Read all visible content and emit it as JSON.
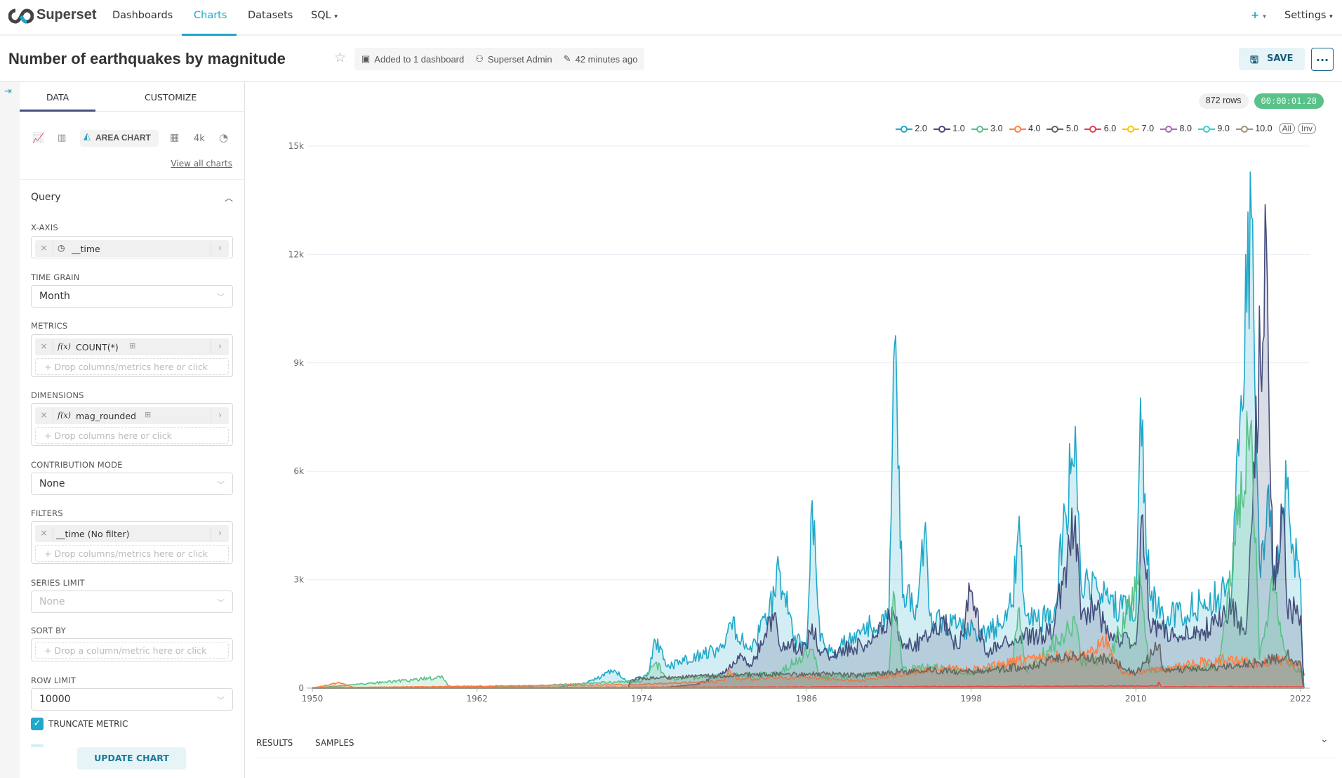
{
  "nav": {
    "brand": "Superset",
    "items": [
      "Dashboards",
      "Charts",
      "Datasets",
      "SQL"
    ],
    "active": "Charts",
    "plus": "+",
    "settings": "Settings"
  },
  "header": {
    "title": "Number of earthquakes by magnitude",
    "dashboards": "Added to 1 dashboard",
    "owner": "Superset Admin",
    "modified": "42 minutes ago",
    "save": "SAVE",
    "more": "..."
  },
  "sidebar": {
    "tabs": [
      "DATA",
      "CUSTOMIZE"
    ],
    "viz_types": {
      "active": "AREA CHART",
      "big_number": "4k"
    },
    "view_all": "View all charts",
    "section": "Query",
    "x_axis": {
      "label": "X-AXIS",
      "value": "__time"
    },
    "time_grain": {
      "label": "TIME GRAIN",
      "value": "Month"
    },
    "metrics": {
      "label": "METRICS",
      "value": "COUNT(*)",
      "fx": "f(x)",
      "placeholder": "Drop columns/metrics here or click"
    },
    "dimensions": {
      "label": "DIMENSIONS",
      "value": "mag_rounded",
      "fx": "f(x)",
      "placeholder": "Drop columns here or click"
    },
    "contribution": {
      "label": "CONTRIBUTION MODE",
      "value": "None"
    },
    "filters": {
      "label": "FILTERS",
      "value": "__time (No filter)",
      "placeholder": "Drop columns/metrics here or click"
    },
    "series_limit": {
      "label": "SERIES LIMIT",
      "placeholder": "None"
    },
    "sort_by": {
      "label": "SORT BY",
      "placeholder": "Drop a column/metric here or click"
    },
    "row_limit": {
      "label": "ROW LIMIT",
      "value": "10000"
    },
    "truncate": {
      "label": "TRUNCATE METRIC",
      "checked": true
    },
    "update": "UPDATE CHART"
  },
  "chart_pane": {
    "rows": "872 rows",
    "timer": "00:00:01.28",
    "timer_color": "#5ac189",
    "bottom_tabs": [
      "RESULTS",
      "SAMPLES"
    ],
    "legend_buttons": [
      "All",
      "Inv"
    ]
  },
  "chart_data": {
    "type": "area",
    "xlim": [
      1950,
      2022
    ],
    "ylim": [
      0,
      15000
    ],
    "xticks": [
      1950,
      1962,
      1974,
      1986,
      1998,
      2010,
      2022
    ],
    "yticks": [
      0,
      3000,
      6000,
      9000,
      12000,
      15000
    ],
    "ytick_labels": [
      "0",
      "3k",
      "6k",
      "9k",
      "12k",
      "15k"
    ],
    "grid": true,
    "legend": "top-right",
    "series": [
      {
        "name": "2.0",
        "color": "#1FA8C9",
        "points": [
          [
            1950,
            0
          ],
          [
            1968,
            30
          ],
          [
            1970,
            150
          ],
          [
            1972,
            500
          ],
          [
            1973,
            150
          ],
          [
            1974.5,
            400
          ],
          [
            1975,
            1300
          ],
          [
            1976,
            600
          ],
          [
            1978,
            900
          ],
          [
            1980,
            1100
          ],
          [
            1980.5,
            1800
          ],
          [
            1982,
            1000
          ],
          [
            1983.7,
            2600
          ],
          [
            1984,
            3300
          ],
          [
            1985,
            1500
          ],
          [
            1986,
            1100
          ],
          [
            1986.4,
            5300
          ],
          [
            1987,
            1300
          ],
          [
            1988,
            1000
          ],
          [
            1990,
            1600
          ],
          [
            1992,
            1900
          ],
          [
            1992.4,
            9700
          ],
          [
            1993,
            2500
          ],
          [
            1994,
            2300
          ],
          [
            1994.7,
            4700
          ],
          [
            1995,
            2000
          ],
          [
            1997,
            1700
          ],
          [
            1999,
            1500
          ],
          [
            2000,
            1700
          ],
          [
            2001,
            2300
          ],
          [
            2001.4,
            4400
          ],
          [
            2002,
            2000
          ],
          [
            2004,
            1900
          ],
          [
            2005.6,
            7300
          ],
          [
            2006,
            2900
          ],
          [
            2008,
            2400
          ],
          [
            2010,
            2000
          ],
          [
            2010.3,
            8300
          ],
          [
            2011,
            2600
          ],
          [
            2012,
            2000
          ],
          [
            2014,
            2200
          ],
          [
            2016,
            2600
          ],
          [
            2017,
            2800
          ],
          [
            2018.4,
            13300
          ],
          [
            2019,
            3500
          ],
          [
            2019.8,
            5300
          ],
          [
            2020,
            3000
          ],
          [
            2021,
            5500
          ],
          [
            2021.5,
            3800
          ],
          [
            2022,
            3000
          ],
          [
            2022.2,
            0
          ]
        ]
      },
      {
        "name": "1.0",
        "color": "#454E7C",
        "points": [
          [
            1950,
            0
          ],
          [
            1975,
            0
          ],
          [
            1978,
            100
          ],
          [
            1980,
            400
          ],
          [
            1981,
            900
          ],
          [
            1982,
            600
          ],
          [
            1983.7,
            2100
          ],
          [
            1984,
            1200
          ],
          [
            1986,
            1100
          ],
          [
            1986.4,
            1800
          ],
          [
            1987,
            900
          ],
          [
            1990,
            1200
          ],
          [
            1992.4,
            2000
          ],
          [
            1993,
            1100
          ],
          [
            1995,
            1400
          ],
          [
            1996,
            2000
          ],
          [
            1997,
            1100
          ],
          [
            1998,
            2700
          ],
          [
            1999,
            1000
          ],
          [
            2001,
            1300
          ],
          [
            2004,
            1600
          ],
          [
            2005.6,
            4800
          ],
          [
            2006,
            1900
          ],
          [
            2007,
            2300
          ],
          [
            2008,
            1500
          ],
          [
            2010,
            1200
          ],
          [
            2010.5,
            4800
          ],
          [
            2011,
            1800
          ],
          [
            2013,
            1400
          ],
          [
            2015,
            1600
          ],
          [
            2017,
            2200
          ],
          [
            2018,
            1500
          ],
          [
            2019.5,
            12500
          ],
          [
            2020,
            2700
          ],
          [
            2020.8,
            5000
          ],
          [
            2021,
            2300
          ],
          [
            2022,
            2000
          ],
          [
            2022.2,
            300
          ]
        ]
      },
      {
        "name": "3.0",
        "color": "#5AC189",
        "points": [
          [
            1950,
            0
          ],
          [
            1959.5,
            300
          ],
          [
            1960,
            20
          ],
          [
            1966,
            60
          ],
          [
            1974,
            200
          ],
          [
            1975,
            700
          ],
          [
            1976,
            250
          ],
          [
            1980,
            350
          ],
          [
            1984,
            400
          ],
          [
            1986.4,
            1100
          ],
          [
            1987,
            300
          ],
          [
            1992,
            400
          ],
          [
            1992.4,
            2600
          ],
          [
            1993,
            500
          ],
          [
            1995,
            600
          ],
          [
            1998,
            400
          ],
          [
            2001,
            700
          ],
          [
            2001.4,
            2200
          ],
          [
            2002,
            500
          ],
          [
            2005.6,
            1800
          ],
          [
            2006,
            700
          ],
          [
            2008,
            800
          ],
          [
            2010.3,
            3000
          ],
          [
            2011,
            500
          ],
          [
            2016,
            600
          ],
          [
            2018.4,
            7600
          ],
          [
            2019,
            800
          ],
          [
            2020,
            2800
          ],
          [
            2021,
            700
          ],
          [
            2022,
            500
          ],
          [
            2022.2,
            0
          ]
        ]
      },
      {
        "name": "4.0",
        "color": "#FF7F44",
        "points": [
          [
            1950,
            0
          ],
          [
            1952,
            150
          ],
          [
            1953,
            20
          ],
          [
            1974,
            100
          ],
          [
            1980,
            200
          ],
          [
            1980.4,
            500
          ],
          [
            1981,
            250
          ],
          [
            1986,
            300
          ],
          [
            1990,
            200
          ],
          [
            1996,
            600
          ],
          [
            1998,
            500
          ],
          [
            2002,
            800
          ],
          [
            2006,
            900
          ],
          [
            2008,
            1300
          ],
          [
            2009,
            400
          ],
          [
            2012,
            500
          ],
          [
            2016,
            800
          ],
          [
            2019,
            700
          ],
          [
            2021,
            800
          ],
          [
            2022,
            600
          ],
          [
            2022.2,
            0
          ]
        ]
      },
      {
        "name": "5.0",
        "color": "#666666",
        "points": [
          [
            1950,
            0
          ],
          [
            1973,
            0
          ],
          [
            1973.2,
            250
          ],
          [
            1980,
            350
          ],
          [
            1986,
            400
          ],
          [
            1990,
            350
          ],
          [
            1994,
            500
          ],
          [
            1998,
            450
          ],
          [
            2002,
            600
          ],
          [
            2005.6,
            900
          ],
          [
            2008,
            800
          ],
          [
            2010,
            400
          ],
          [
            2011.7,
            1200
          ],
          [
            2012,
            500
          ],
          [
            2016,
            600
          ],
          [
            2019,
            700
          ],
          [
            2021,
            900
          ],
          [
            2022,
            700
          ],
          [
            2022.2,
            0
          ]
        ]
      },
      {
        "name": "6.0",
        "color": "#E04355",
        "points": [
          [
            1950,
            20
          ],
          [
            1980,
            30
          ],
          [
            2011.6,
            60
          ],
          [
            2011.7,
            220
          ],
          [
            2011.8,
            40
          ],
          [
            2022,
            40
          ]
        ]
      },
      {
        "name": "7.0",
        "color": "#FCC700",
        "points": [
          [
            1950,
            12
          ],
          [
            2022,
            15
          ]
        ]
      },
      {
        "name": "8.0",
        "color": "#A868B7",
        "points": [
          [
            1950,
            3
          ],
          [
            2022,
            5
          ]
        ]
      },
      {
        "name": "9.0",
        "color": "#3CCCCB",
        "points": [
          [
            1950,
            0
          ],
          [
            2022,
            1
          ]
        ]
      },
      {
        "name": "10.0",
        "color": "#A38F79",
        "points": [
          [
            1950,
            0
          ],
          [
            2022,
            0
          ]
        ]
      }
    ]
  }
}
